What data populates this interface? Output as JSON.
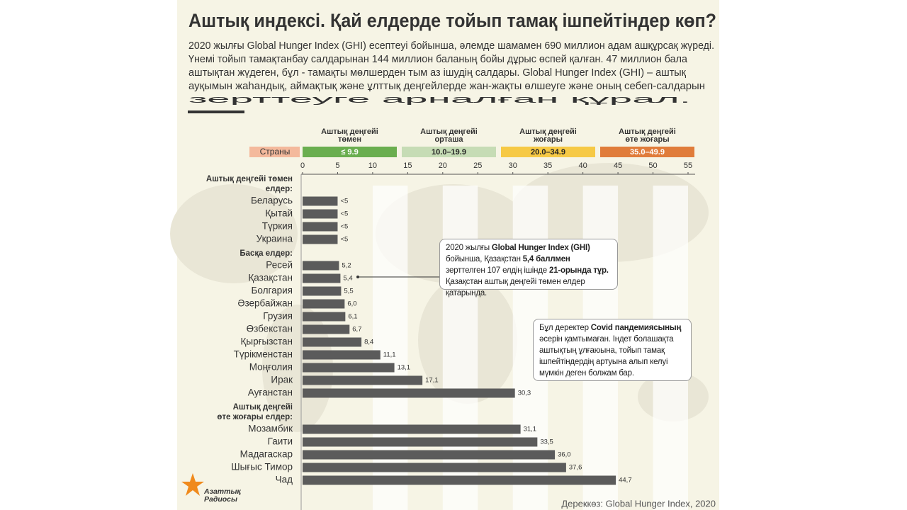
{
  "title": "Аштық индексі. Қай елдерде тойып тамақ ішпейтіндер көп?",
  "intro": [
    "2020 жылғы Global Hunger Index (GHI) есептеуі бойынша, әлемде шамамен 690 миллион адам ашқұрсақ жүреді.",
    "Үнемі тойып тамақтанбау салдарынан 144 миллион баланың бойы дұрыс өспей қалған. 47 миллион бала",
    "аштықтан жүдеген, бұл - тамақты мөлшерден тым аз ішудің салдары. Global Hunger Index (GHI) – аштық",
    "ауқымын жаһандық, аймақтық және ұлттық деңгейлерде жан-жақты өлшеуге және оның себеп-салдарын",
    "зерттеуге арналған құрал."
  ],
  "chart_data": {
    "type": "bar",
    "orientation": "horizontal",
    "color": "#5b5b5b",
    "xlim": [
      0,
      55
    ],
    "xticks": [
      0,
      5,
      10,
      15,
      20,
      25,
      30,
      35,
      40,
      45,
      50,
      55
    ],
    "legend_label": "Страны",
    "legend": [
      {
        "title": [
          "Аштық деңгейі",
          "төмен"
        ],
        "range": "≤ 9.9",
        "color": "#6aae4f"
      },
      {
        "title": [
          "Аштық деңгейі",
          "орташа"
        ],
        "range": "10.0–19.9",
        "color": "#c6dcb5"
      },
      {
        "title": [
          "Аштық деңгейі",
          "жоғары"
        ],
        "range": "20.0–34.9",
        "color": "#f6c945"
      },
      {
        "title": [
          "Аштық деңгейі",
          "өте жоғары"
        ],
        "range": "35.0–49.9",
        "color": "#e07c3a"
      }
    ],
    "groups": [
      {
        "name": [
          "Аштық деңгейі төмен",
          "елдер:"
        ],
        "categories": [
          "Беларусь",
          "Қытай",
          "Түркия",
          "Украина"
        ],
        "values": [
          5,
          5,
          5,
          5
        ],
        "value_labels": [
          "<5",
          "<5",
          "<5",
          "<5"
        ]
      },
      {
        "name": [
          "Басқа елдер:"
        ],
        "categories": [
          "Ресей",
          "Қазақстан",
          "Болгария",
          "Әзербайжан",
          "Грузия",
          "Өзбекстан",
          "Қырғызстан",
          "Түрікменстан",
          "Моңғолия",
          "Ирак",
          "Ауғанстан"
        ],
        "values": [
          5.2,
          5.4,
          5.5,
          6.0,
          6.1,
          6.7,
          8.4,
          11.1,
          13.1,
          17.1,
          30.3
        ],
        "value_labels": [
          "5,2",
          "5,4",
          "5,5",
          "6,0",
          "6,1",
          "6,7",
          "8,4",
          "11,1",
          "13,1",
          "17,1",
          "30,3"
        ]
      },
      {
        "name": [
          "Аштық деңгейі",
          "өте жоғары елдер:"
        ],
        "categories": [
          "Мозамбик",
          "Гаити",
          "Мадагаскар",
          "Шығыс Тимор",
          "Чад"
        ],
        "values": [
          31.1,
          33.5,
          36.0,
          37.6,
          44.7
        ],
        "value_labels": [
          "31,1",
          "33,5",
          "36,0",
          "37,6",
          "44,7"
        ]
      }
    ]
  },
  "annotations": [
    {
      "parts": [
        {
          "text": "2020 жылғы "
        },
        {
          "text": "Global Hunger Index (GHI)",
          "bold": true
        },
        {
          "text": " бойынша, Қазақстан "
        },
        {
          "text": "5,4 баллмен",
          "bold": true
        },
        {
          "text": " зерттелген 107 елдің ішінде "
        },
        {
          "text": "21-орында тұр.",
          "bold": true
        },
        {
          "text": " Қазақстан аштық деңгейі төмен елдер қатарында."
        }
      ]
    },
    {
      "parts": [
        {
          "text": "Бұл деректер "
        },
        {
          "text": "Covid пандемиясының",
          "bold": true
        },
        {
          "text": " әсерін қамтымаған. Індет болашақта аштықтың ұлғаюына, тойып тамақ ішпейтіндердің артуына алып келуі мүмкін деген болжам бар."
        }
      ]
    }
  ],
  "source": "Дереккөз: Global Hunger Index, 2020",
  "logo": [
    "Азаттық",
    "Радиосы"
  ]
}
